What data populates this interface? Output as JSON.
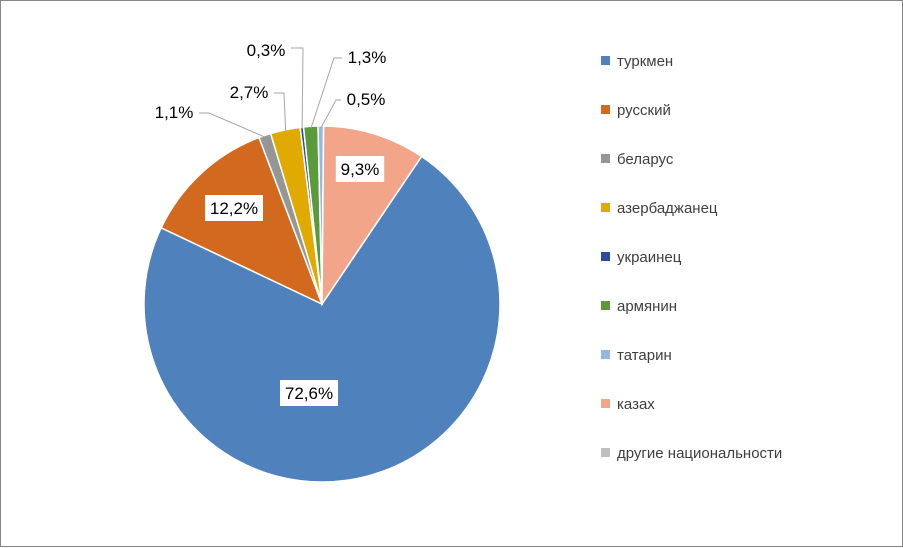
{
  "chart_data": {
    "type": "pie",
    "title": "",
    "legend_position": "right",
    "categories": [
      "туркмен",
      "русский",
      "беларус",
      "азербаджанец",
      "украинец",
      "армянин",
      "татарин",
      "казах",
      "другие национальности"
    ],
    "values": [
      72.6,
      12.2,
      1.1,
      2.7,
      0.3,
      1.3,
      0.5,
      9.3,
      0.0
    ],
    "data_labels": [
      "72,6%",
      "12,2%",
      "1,1%",
      "2,7%",
      "0,3%",
      "1,3%",
      "0,5%",
      "9,3%",
      ""
    ],
    "colors": [
      "#4F81BD",
      "#D2691E",
      "#969696",
      "#E1AA00",
      "#2E4C9A",
      "#5A9A3A",
      "#95B8E0",
      "#F2A589",
      "#BFBFBF"
    ]
  }
}
